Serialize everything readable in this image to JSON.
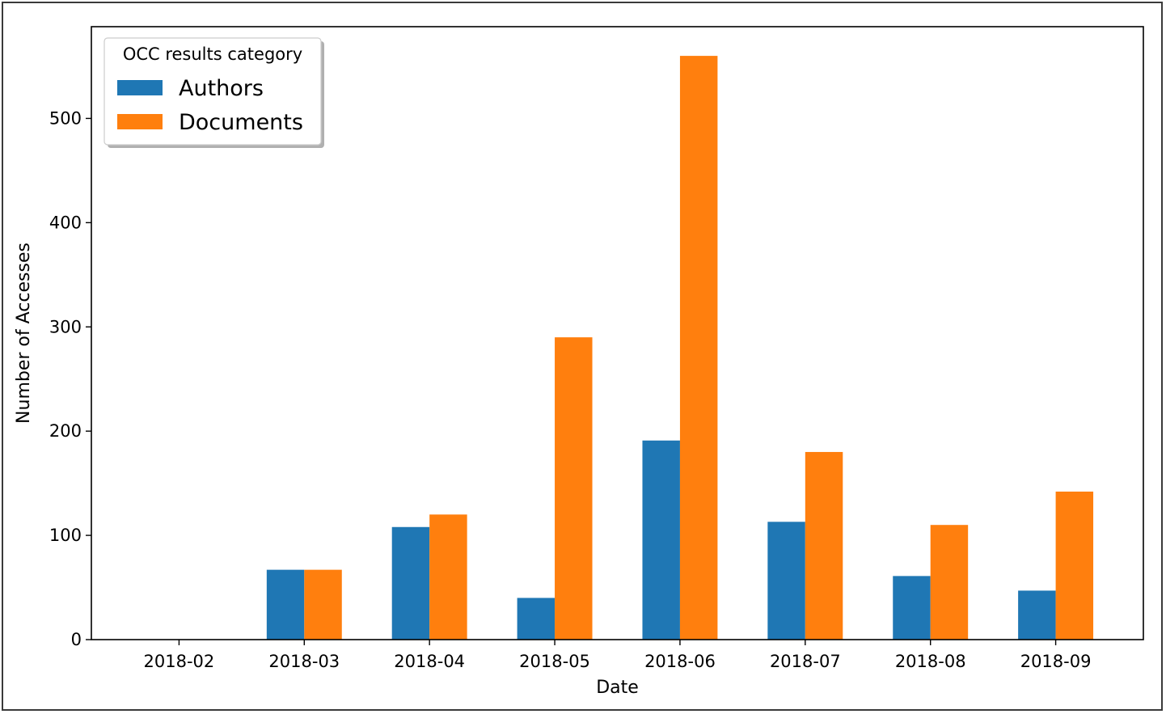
{
  "chart_data": {
    "type": "bar",
    "title": "",
    "xlabel": "Date",
    "ylabel": "Number of Accesses",
    "categories": [
      "2018-02",
      "2018-03",
      "2018-04",
      "2018-05",
      "2018-06",
      "2018-07",
      "2018-08",
      "2018-09"
    ],
    "series": [
      {
        "name": "Authors",
        "color": "#1f77b4",
        "values": [
          0,
          67,
          108,
          40,
          191,
          113,
          61,
          47
        ]
      },
      {
        "name": "Documents",
        "color": "#ff7f0e",
        "values": [
          0,
          67,
          120,
          290,
          560,
          180,
          110,
          142
        ]
      }
    ],
    "ylim": [
      0,
      588
    ],
    "yticks": [
      0,
      100,
      200,
      300,
      400,
      500
    ],
    "grid": false,
    "legend": {
      "title": "OCC results category",
      "position": "top-left"
    }
  }
}
